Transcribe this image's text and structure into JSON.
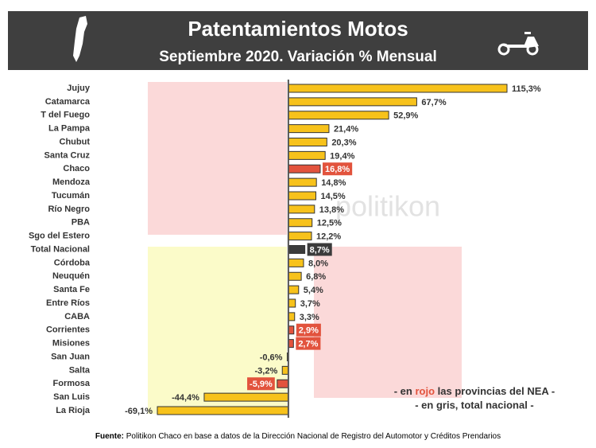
{
  "chart_data": {
    "type": "bar",
    "orientation": "horizontal",
    "title": "Patentamientos Motos",
    "subtitle": "Septiembre 2020. Variación % Mensual",
    "categories": [
      "Jujuy",
      "Catamarca",
      "T del Fuego",
      "La Pampa",
      "Chubut",
      "Santa Cruz",
      "Chaco",
      "Mendoza",
      "Tucumán",
      "Río Negro",
      "PBA",
      "Sgo del Estero",
      "Total Nacional",
      "Córdoba",
      "Neuquén",
      "Santa Fe",
      "Entre Ríos",
      "CABA",
      "Corrientes",
      "Misiones",
      "San Juan",
      "Salta",
      "Formosa",
      "San Luis",
      "La Rioja"
    ],
    "values": [
      115.3,
      67.7,
      52.9,
      21.4,
      20.3,
      19.4,
      16.8,
      14.8,
      14.5,
      13.8,
      12.5,
      12.2,
      8.7,
      8.0,
      6.8,
      5.4,
      3.7,
      3.3,
      2.9,
      2.7,
      -0.6,
      -3.2,
      -5.9,
      -44.4,
      -69.1
    ],
    "value_labels": [
      "115,3%",
      "67,7%",
      "52,9%",
      "21,4%",
      "20,3%",
      "19,4%",
      "16,8%",
      "14,8%",
      "14,5%",
      "13,8%",
      "12,5%",
      "12,2%",
      "8,7%",
      "8,0%",
      "6,8%",
      "5,4%",
      "3,7%",
      "3,3%",
      "2,9%",
      "2,7%",
      "-0,6%",
      "-3,2%",
      "-5,9%",
      "-44,4%",
      "-69,1%"
    ],
    "color": "#f7c21b",
    "colors": [
      "#f7c21b",
      "#f7c21b",
      "#f7c21b",
      "#f7c21b",
      "#f7c21b",
      "#f7c21b",
      "#e2533d",
      "#f7c21b",
      "#f7c21b",
      "#f7c21b",
      "#f7c21b",
      "#f7c21b",
      "#3b3b3b",
      "#f7c21b",
      "#f7c21b",
      "#f7c21b",
      "#f7c21b",
      "#f7c21b",
      "#e2533d",
      "#e2533d",
      "#f7c21b",
      "#f7c21b",
      "#e2533d",
      "#f7c21b",
      "#f7c21b"
    ],
    "watermark": "politikon",
    "notes": [
      [
        "- en ",
        "rojo",
        " las provincias del NEA -"
      ],
      [
        "- en gris, total nacional -"
      ]
    ],
    "source": [
      "Fuente:",
      " Politikon Chaco en base a datos de la Dirección Nacional de Registro del Automotor y Créditos Prendarios"
    ]
  }
}
